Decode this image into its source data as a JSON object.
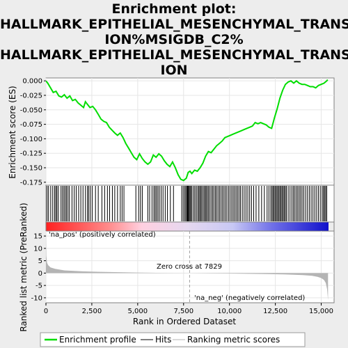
{
  "title_lines": [
    "Enrichment plot:",
    "HALLMARK_EPITHELIAL_MESENCHYMAL_TRANSIT",
    "ION%MSIGDB_C2%",
    "HALLMARK_EPITHELIAL_MESENCHYMAL_TRANSIT",
    "ION"
  ],
  "colors": {
    "es_line": "#00dd00",
    "hits": "#000000",
    "metric_fill": "#b4b4b4",
    "zero_cross_line": "#a0a0a0",
    "pos_label": "#cc0000",
    "neg_label": "#0000aa",
    "panel_bg": "#ffffff"
  },
  "chart_data": {
    "type": "line",
    "xlabel": "Rank in Ordered Dataset",
    "xlim": [
      0,
      15700
    ],
    "x_ticks": [
      0,
      2500,
      5000,
      7500,
      10000,
      12500,
      15000
    ],
    "x_tick_labels": [
      "0",
      "2,500",
      "5,000",
      "7,500",
      "10,000",
      "12,500",
      "15,000"
    ],
    "es_panel": {
      "ylabel": "Enrichment score (ES)",
      "ylim": [
        -0.18,
        0.005
      ],
      "y_ticks": [
        0,
        -0.025,
        -0.05,
        -0.075,
        -0.1,
        -0.125,
        -0.15,
        -0.175
      ],
      "y_tick_labels": [
        "0.000",
        "-0.025",
        "-0.050",
        "-0.075",
        "-0.100",
        "-0.125",
        "-0.150",
        "-0.175"
      ],
      "series": [
        {
          "name": "Enrichment profile",
          "x": [
            0,
            100,
            250,
            400,
            550,
            700,
            850,
            1000,
            1150,
            1300,
            1450,
            1600,
            1750,
            1900,
            2050,
            2150,
            2250,
            2400,
            2550,
            2700,
            2850,
            3000,
            3150,
            3300,
            3450,
            3600,
            3750,
            3900,
            4050,
            4200,
            4350,
            4500,
            4650,
            4800,
            4950,
            5100,
            5250,
            5400,
            5550,
            5700,
            5850,
            6000,
            6150,
            6300,
            6450,
            6600,
            6750,
            6900,
            7050,
            7200,
            7350,
            7500,
            7650,
            7750,
            7850,
            7950,
            8100,
            8250,
            8400,
            8550,
            8700,
            8850,
            9000,
            9150,
            9300,
            9450,
            9600,
            9750,
            9900,
            10050,
            10200,
            10350,
            10500,
            10650,
            10800,
            10950,
            11100,
            11250,
            11400,
            11550,
            11700,
            11850,
            12000,
            12150,
            12300,
            12450,
            12600,
            12750,
            12900,
            13050,
            13200,
            13350,
            13500,
            13650,
            13800,
            13950,
            14100,
            14250,
            14400,
            14550,
            14700,
            14850,
            15000,
            15150,
            15300,
            15350
          ],
          "values": [
            0.0,
            -0.004,
            -0.012,
            -0.02,
            -0.018,
            -0.026,
            -0.028,
            -0.024,
            -0.03,
            -0.026,
            -0.034,
            -0.032,
            -0.038,
            -0.042,
            -0.046,
            -0.036,
            -0.04,
            -0.046,
            -0.044,
            -0.05,
            -0.058,
            -0.066,
            -0.07,
            -0.072,
            -0.08,
            -0.085,
            -0.09,
            -0.094,
            -0.09,
            -0.098,
            -0.108,
            -0.116,
            -0.124,
            -0.132,
            -0.136,
            -0.126,
            -0.134,
            -0.14,
            -0.144,
            -0.14,
            -0.128,
            -0.132,
            -0.126,
            -0.13,
            -0.138,
            -0.144,
            -0.148,
            -0.14,
            -0.15,
            -0.162,
            -0.17,
            -0.172,
            -0.168,
            -0.158,
            -0.156,
            -0.16,
            -0.154,
            -0.156,
            -0.15,
            -0.142,
            -0.13,
            -0.122,
            -0.124,
            -0.118,
            -0.112,
            -0.108,
            -0.104,
            -0.098,
            -0.096,
            -0.094,
            -0.092,
            -0.09,
            -0.088,
            -0.086,
            -0.084,
            -0.082,
            -0.08,
            -0.078,
            -0.072,
            -0.074,
            -0.072,
            -0.074,
            -0.076,
            -0.08,
            -0.082,
            -0.064,
            -0.048,
            -0.03,
            -0.016,
            -0.006,
            -0.002,
            0.0,
            -0.004,
            0.0,
            -0.004,
            -0.006,
            -0.006,
            -0.008,
            -0.01,
            -0.01,
            -0.012,
            -0.008,
            -0.006,
            -0.004,
            0.0,
            0.002
          ]
        }
      ]
    },
    "hits": [
      60,
      140,
      260,
      370,
      470,
      540,
      600,
      680,
      820,
      900,
      980,
      1050,
      1120,
      1200,
      1280,
      1420,
      1540,
      1650,
      1780,
      1900,
      2020,
      2150,
      2260,
      2330,
      2420,
      2520,
      2700,
      2850,
      3050,
      3200,
      3350,
      3470,
      3620,
      3750,
      3900,
      4050,
      4150,
      4250,
      4900,
      5050,
      5150,
      5250,
      5550,
      5650,
      5780,
      5880,
      5950,
      6020,
      6100,
      6180,
      6280,
      6380,
      6500,
      6620,
      6780,
      6950,
      7400,
      7480,
      7560,
      7620,
      7680,
      7720,
      7760,
      7800,
      7850,
      7900,
      7960,
      8050,
      8120,
      8200,
      8280,
      8340,
      8400,
      8460,
      8520,
      8600,
      8660,
      8720,
      8780,
      8850,
      8920,
      9000,
      9080,
      9150,
      9230,
      9300,
      9380,
      9460,
      9540,
      9620,
      9700,
      9780,
      9860,
      9950,
      10030,
      10120,
      10200,
      10280,
      10360,
      10440,
      10520,
      10600,
      10700,
      10800,
      10900,
      11000,
      11100,
      11200,
      11320,
      11450,
      11600,
      11750,
      11900,
      12050,
      12150,
      12250,
      12320,
      12380,
      12440,
      12500,
      12560,
      12620,
      12680,
      12740,
      12800,
      12860,
      12920,
      12980,
      13040,
      13100,
      13200,
      13300,
      13400,
      13480,
      13560,
      13640,
      13720,
      13800,
      13880,
      13960,
      14050,
      14150,
      14250,
      14350,
      14450,
      14550,
      14650,
      14750,
      14850,
      14950,
      15050,
      15120,
      15180,
      15240,
      15300
    ],
    "metric_panel": {
      "ylabel": "Ranked list metric (PreRanked)",
      "ylim": [
        -12,
        17
      ],
      "y_ticks": [
        15,
        10,
        5,
        0,
        -5,
        -10
      ],
      "y_tick_labels": [
        "15",
        "10",
        "5",
        "0",
        "-5",
        "-10"
      ],
      "x": [
        0,
        20,
        60,
        120,
        250,
        500,
        1000,
        2000,
        3000,
        4000,
        5000,
        6000,
        7000,
        7829,
        9000,
        10000,
        11000,
        12000,
        13000,
        14000,
        14500,
        14800,
        15000,
        15150,
        15250,
        15320,
        15370
      ],
      "values": [
        17,
        7,
        4.2,
        3.2,
        2.3,
        1.7,
        1.1,
        0.7,
        0.5,
        0.35,
        0.22,
        0.12,
        0.05,
        0.0,
        -0.08,
        -0.18,
        -0.28,
        -0.4,
        -0.55,
        -0.8,
        -1.1,
        -1.5,
        -2.0,
        -2.8,
        -4.0,
        -6.5,
        -11
      ]
    },
    "annotations": {
      "zero_cross_rank": 7829,
      "zero_cross_label": "Zero cross at 7829",
      "pos_label": "'na_pos' (positively correlated)",
      "neg_label": "'na_neg' (negatively correlated)"
    },
    "legend": {
      "placement": "bottom",
      "entries": [
        "Enrichment profile",
        "Hits",
        "Ranking metric scores"
      ]
    }
  }
}
